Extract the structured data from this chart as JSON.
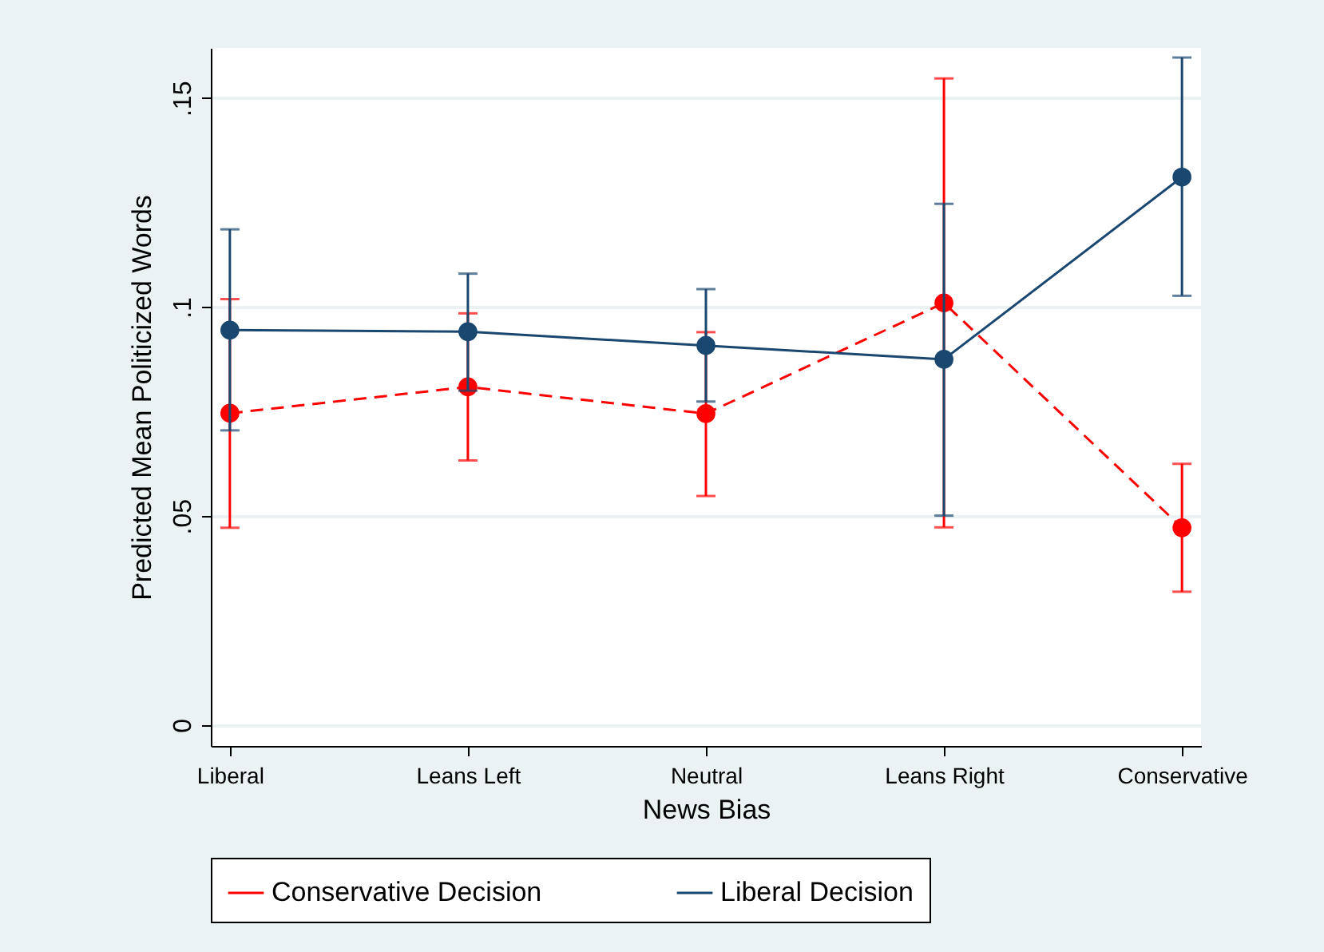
{
  "chart_data": {
    "type": "line",
    "xlabel": "News Bias",
    "ylabel": "Predicted Mean Politicized Words",
    "categories": [
      "Liberal",
      "Leans Left",
      "Neutral",
      "Leans Right",
      "Conservative"
    ],
    "series": [
      {
        "name": "Conservative Decision",
        "color": "#ff0000",
        "line_style": "dashed",
        "values": [
          0.0746,
          0.0809,
          0.0745,
          0.101,
          0.0472
        ],
        "errors": [
          [
            0.0472,
            0.1019
          ],
          [
            0.0633,
            0.0985
          ],
          [
            0.0548,
            0.094
          ],
          [
            0.0473,
            0.1547
          ],
          [
            0.0319,
            0.0625
          ]
        ]
      },
      {
        "name": "Liberal Decision",
        "color": "#1a476f",
        "line_style": "solid",
        "values": [
          0.0945,
          0.0941,
          0.0908,
          0.0875,
          0.1311
        ],
        "errors": [
          [
            0.0705,
            0.1186
          ],
          [
            0.08,
            0.108
          ],
          [
            0.0774,
            0.1043
          ],
          [
            0.0501,
            0.1247
          ],
          [
            0.1027,
            0.1597
          ]
        ]
      }
    ],
    "ylim": [
      -0.005,
      0.162
    ],
    "yticks": [
      {
        "value": 0,
        "label": "0"
      },
      {
        "value": 0.05,
        "label": ".05"
      },
      {
        "value": 0.1,
        "label": ".1"
      },
      {
        "value": 0.15,
        "label": ".15"
      }
    ],
    "grid": "y",
    "legend": "bottom",
    "marker": "circle"
  }
}
